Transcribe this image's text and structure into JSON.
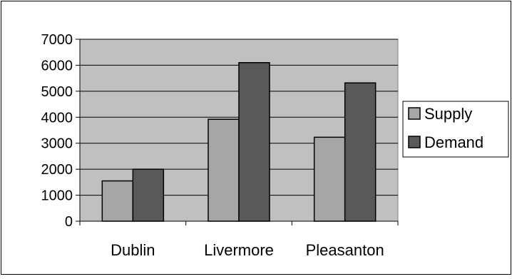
{
  "chart_data": {
    "type": "bar",
    "title": "",
    "xlabel": "",
    "ylabel": "",
    "categories": [
      "Dublin",
      "Livermore",
      "Pleasanton"
    ],
    "series": [
      {
        "name": "Supply",
        "values": [
          1550,
          3920,
          3230
        ],
        "color": "#a6a6a6"
      },
      {
        "name": "Demand",
        "values": [
          2000,
          6100,
          5320
        ],
        "color": "#595959"
      }
    ],
    "ylim": [
      0,
      7000
    ],
    "yticks": [
      0,
      1000,
      2000,
      3000,
      4000,
      5000,
      6000,
      7000
    ],
    "grid": true,
    "legend_position": "right",
    "plot_background": "#c0c0c0"
  }
}
